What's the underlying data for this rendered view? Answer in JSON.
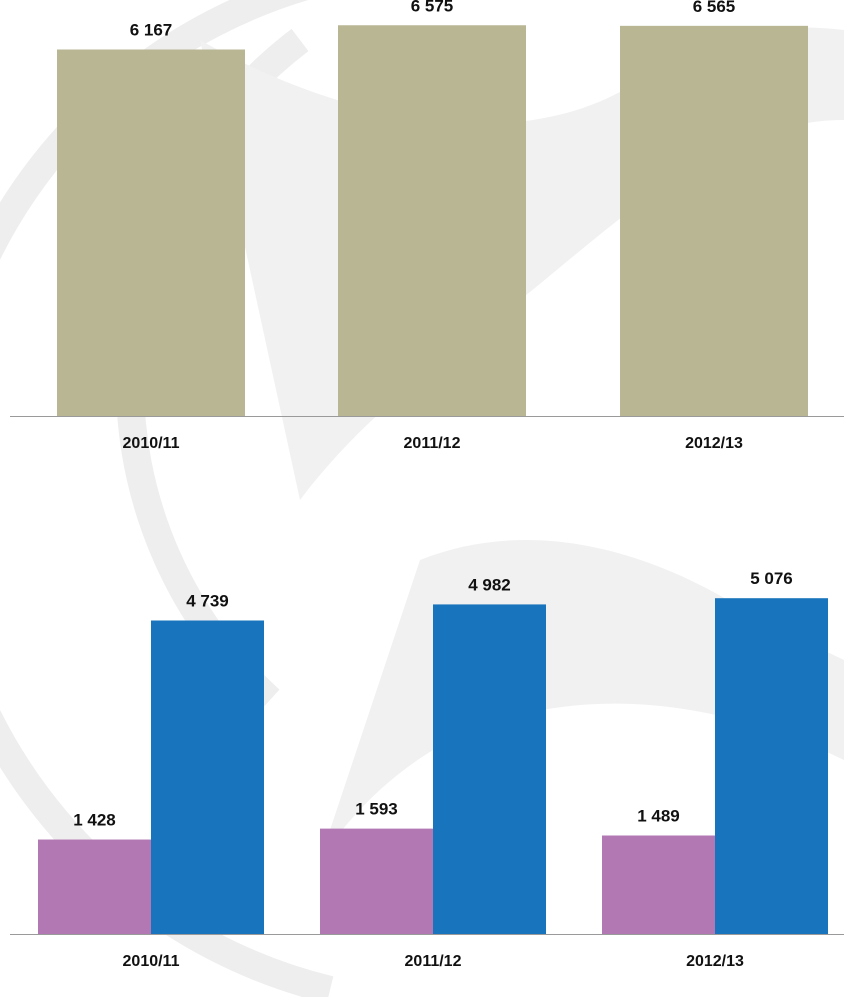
{
  "colors": {
    "background": "#ffffff",
    "watermark": "#eeeeee",
    "axis": "#9a9a9a",
    "text": "#111111"
  },
  "chart_data": [
    {
      "type": "bar",
      "categories": [
        "2010/11",
        "2011/12",
        "2012/13"
      ],
      "series": [
        {
          "values": [
            6167,
            6575,
            6565
          ],
          "labels": [
            "6 167",
            "6 575",
            "6 565"
          ],
          "color": "#b8b693"
        }
      ],
      "title": "",
      "xlabel": "",
      "ylabel": "",
      "ylim": [
        0,
        7000
      ],
      "grid": false,
      "legend": "none"
    },
    {
      "type": "bar",
      "categories": [
        "2010/11",
        "2011/12",
        "2012/13"
      ],
      "series": [
        {
          "values": [
            1428,
            1593,
            1489
          ],
          "labels": [
            "1 428",
            "1 593",
            "1 489"
          ],
          "color": "#b278b3"
        },
        {
          "values": [
            4739,
            4982,
            5076
          ],
          "labels": [
            "4 739",
            "4 982",
            "5 076"
          ],
          "color": "#1874bd"
        }
      ],
      "title": "",
      "xlabel": "",
      "ylabel": "",
      "ylim": [
        0,
        6500
      ],
      "grid": false,
      "legend": "none"
    }
  ]
}
